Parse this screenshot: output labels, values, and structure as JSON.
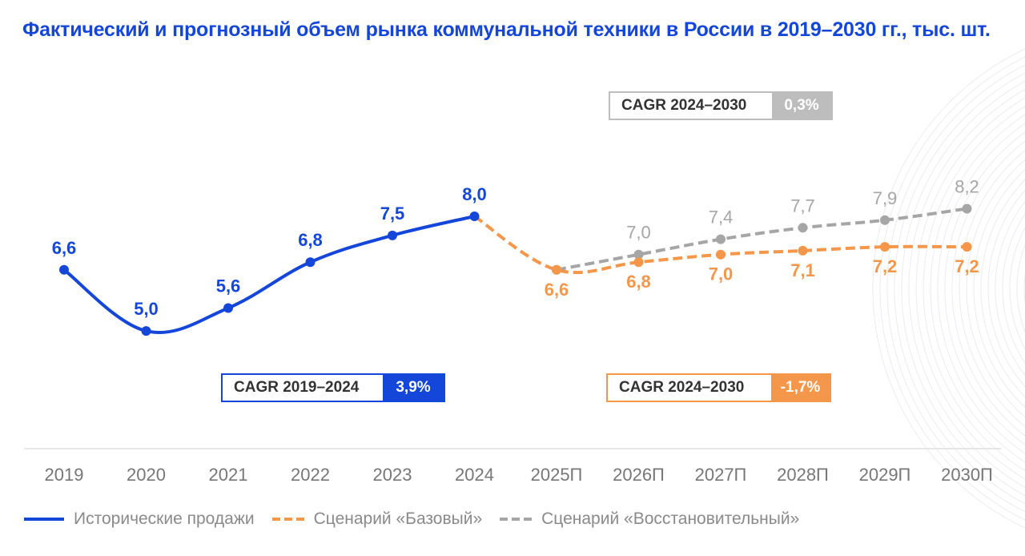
{
  "title": "Фактический и прогнозный объем рынка коммунальной техники в России в 2019–2030 гг., тыс. шт.",
  "colors": {
    "historical": "#1447d9",
    "base": "#f5974a",
    "recovery": "#a6a6a6",
    "title": "#1447d9",
    "axis_text": "#777777"
  },
  "cagr_boxes": [
    {
      "label": "CAGR 2019–2024",
      "value": "3,9%",
      "series": "historical"
    },
    {
      "label": "CAGR 2024–2030",
      "value": "-1,7%",
      "series": "base"
    },
    {
      "label": "CAGR 2024–2030",
      "value": "0,3%",
      "series": "recovery"
    }
  ],
  "chart_data": {
    "type": "line",
    "title": "Фактический и прогнозный объем рынка коммунальной техники в России в 2019–2030 гг., тыс. шт.",
    "xlabel": "",
    "ylabel": "тыс. шт.",
    "categories": [
      "2019",
      "2020",
      "2021",
      "2022",
      "2023",
      "2024",
      "2025П",
      "2026П",
      "2027П",
      "2028П",
      "2029П",
      "2030П"
    ],
    "ylim": [
      4.5,
      8.5
    ],
    "grid": false,
    "legend_position": "bottom",
    "series": [
      {
        "name": "Исторические продажи",
        "key": "historical",
        "style": "solid",
        "values": [
          6.6,
          5.0,
          5.6,
          6.8,
          7.5,
          8.0,
          null,
          null,
          null,
          null,
          null,
          null
        ],
        "labels": [
          "6,6",
          "5,0",
          "5,6",
          "6,8",
          "7,5",
          "8,0",
          null,
          null,
          null,
          null,
          null,
          null
        ]
      },
      {
        "name": "Сценарий «Базовый»",
        "key": "base",
        "style": "dashed",
        "values": [
          null,
          null,
          null,
          null,
          null,
          8.0,
          6.6,
          6.8,
          7.0,
          7.1,
          7.2,
          7.2
        ],
        "labels": [
          null,
          null,
          null,
          null,
          null,
          null,
          "6,6",
          "6,8",
          "7,0",
          "7,1",
          "7,2",
          "7,2"
        ]
      },
      {
        "name": "Сценарий «Восстановительный»",
        "key": "recovery",
        "style": "dashed",
        "values": [
          null,
          null,
          null,
          null,
          null,
          null,
          6.6,
          7.0,
          7.4,
          7.7,
          7.9,
          8.2
        ],
        "labels": [
          null,
          null,
          null,
          null,
          null,
          null,
          null,
          "7,0",
          "7,4",
          "7,7",
          "7,9",
          "8,2"
        ]
      }
    ]
  }
}
